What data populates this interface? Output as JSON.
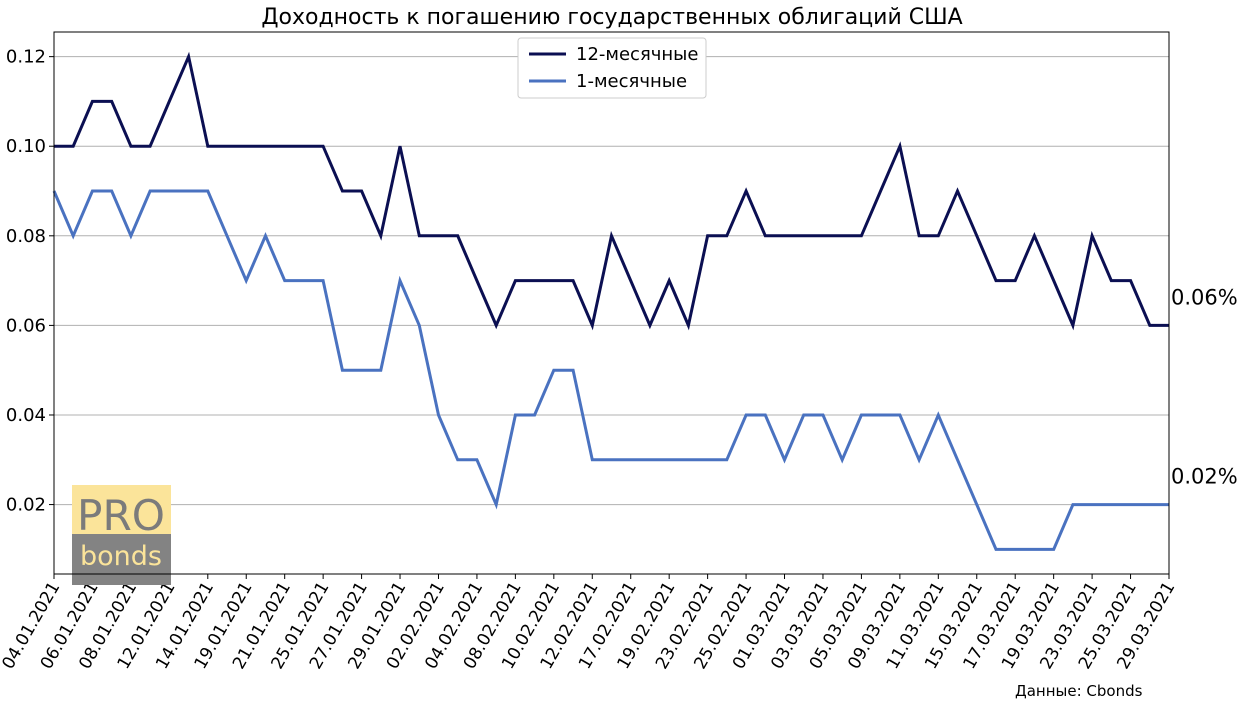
{
  "chart_data": {
    "type": "line",
    "title": "Доходность к погашению государственных облигаций США",
    "xlabel": "",
    "ylabel": "",
    "ylim": [
      0.0045,
      0.1255
    ],
    "y_ticks": [
      "0.02",
      "0.04",
      "0.06",
      "0.08",
      "0.10",
      "0.12"
    ],
    "x_tick_labels": [
      "04.01.2021",
      "06.01.2021",
      "08.01.2021",
      "12.01.2021",
      "14.01.2021",
      "19.01.2021",
      "21.01.2021",
      "25.01.2021",
      "27.01.2021",
      "29.01.2021",
      "02.02.2021",
      "04.02.2021",
      "08.02.2021",
      "10.02.2021",
      "12.02.2021",
      "17.02.2021",
      "19.02.2021",
      "23.02.2021",
      "25.02.2021",
      "01.03.2021",
      "03.03.2021",
      "05.03.2021",
      "09.03.2021",
      "11.03.2021",
      "15.03.2021",
      "17.03.2021",
      "19.03.2021",
      "23.03.2021",
      "25.03.2021",
      "29.03.2021"
    ],
    "grid": "horizontal",
    "legend_position": "top-center",
    "series": [
      {
        "name": "12-месячные",
        "color": "#0b0f52",
        "values": [
          0.1,
          0.1,
          0.11,
          0.11,
          0.1,
          0.1,
          0.11,
          0.12,
          0.1,
          0.1,
          0.1,
          0.1,
          0.1,
          0.1,
          0.1,
          0.09,
          0.09,
          0.08,
          0.1,
          0.08,
          0.08,
          0.08,
          0.07,
          0.06,
          0.07,
          0.07,
          0.07,
          0.07,
          0.06,
          0.08,
          0.07,
          0.06,
          0.07,
          0.06,
          0.08,
          0.08,
          0.09,
          0.08,
          0.08,
          0.08,
          0.08,
          0.08,
          0.08,
          0.09,
          0.1,
          0.08,
          0.08,
          0.09,
          0.08,
          0.07,
          0.07,
          0.08,
          0.07,
          0.06,
          0.08,
          0.07,
          0.07,
          0.06,
          0.06
        ],
        "end_label": "0.06%"
      },
      {
        "name": "1-месячные",
        "color": "#4a72c0",
        "values": [
          0.09,
          0.08,
          0.09,
          0.09,
          0.08,
          0.09,
          0.09,
          0.09,
          0.09,
          0.08,
          0.07,
          0.08,
          0.07,
          0.07,
          0.07,
          0.05,
          0.05,
          0.05,
          0.07,
          0.06,
          0.04,
          0.03,
          0.03,
          0.02,
          0.04,
          0.04,
          0.05,
          0.05,
          0.03,
          0.03,
          0.03,
          0.03,
          0.03,
          0.03,
          0.03,
          0.03,
          0.04,
          0.04,
          0.03,
          0.04,
          0.04,
          0.03,
          0.04,
          0.04,
          0.04,
          0.03,
          0.04,
          0.03,
          0.02,
          0.01,
          0.01,
          0.01,
          0.01,
          0.02,
          0.02,
          0.02,
          0.02,
          0.02,
          0.02
        ],
        "end_label": "0.02%"
      }
    ]
  },
  "logo": {
    "top": "PRO",
    "bottom": "bonds",
    "top_bg": "#fbe49a",
    "bottom_bg": "#838383"
  },
  "source": "Данные: Cbonds"
}
